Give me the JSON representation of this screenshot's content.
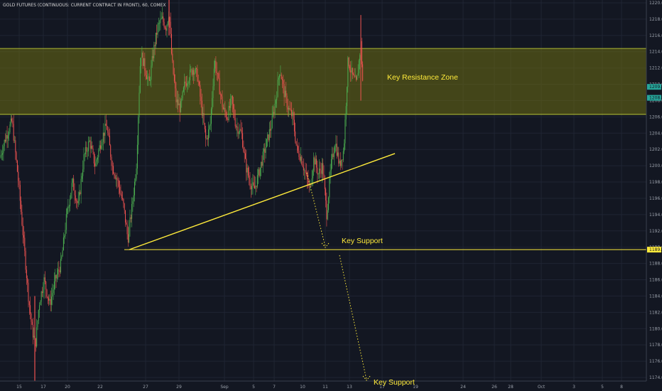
{
  "chart_data": {
    "type": "candlestick",
    "title": "GOLD FUTURES (CONTINUOUS: CURRENT CONTRACT IN FRONT), 60, COMEX",
    "ylim": [
      1173,
      1221
    ],
    "y_ticks": [
      "1174.0",
      "1176.0",
      "1178.0",
      "1180.0",
      "1182.0",
      "1184.0",
      "1186.0",
      "1188.0",
      "1190.0",
      "1192.0",
      "1194.0",
      "1196.0",
      "1198.0",
      "1200.0",
      "1202.0",
      "1204.0",
      "1206.0",
      "1208.0",
      "1210.0",
      "1212.0",
      "1214.0",
      "1216.0",
      "1218.0",
      "1220.0"
    ],
    "x_ticks": [
      "15",
      "17",
      "20",
      "22",
      "27",
      "29",
      "Sep",
      "5",
      "7",
      "10",
      "11",
      "13",
      "17",
      "19",
      "24",
      "26",
      "28",
      "Oct",
      "3",
      "5",
      "8"
    ],
    "price_labels": [
      {
        "value": 1209.6,
        "text": "1209.6",
        "color": "#26a69a"
      },
      {
        "value": 1208.6,
        "text": "1208.6",
        "color": "#26a69a"
      },
      {
        "value": 1189.7,
        "text": "1189.7",
        "color": "#ffeb3b"
      }
    ],
    "zones": [
      {
        "name": "Key Resistance Zone",
        "from": 1206.3,
        "to": 1214.4,
        "color": "#6b6b12"
      }
    ],
    "horizontal_lines": [
      {
        "value": 1189.7,
        "color": "#ffeb3b"
      }
    ],
    "trendlines": [
      {
        "from": {
          "x": "22",
          "y": 1189.7
        },
        "to": {
          "x": "17",
          "y": 1201.5
        },
        "color": "#ffeb3b"
      }
    ],
    "annotations": [
      {
        "text": "Key Resistance Zone"
      },
      {
        "text": "Key Support"
      },
      {
        "text": "Key Support"
      }
    ],
    "candle_colors": {
      "up": "#4caf50",
      "down": "#ef5350"
    },
    "price_anchors": [
      [
        0,
        1201
      ],
      [
        8,
        1203.5
      ],
      [
        17,
        1205.5
      ],
      [
        26,
        1198
      ],
      [
        34,
        1190
      ],
      [
        40,
        1184
      ],
      [
        45,
        1180
      ],
      [
        50,
        1178
      ],
      [
        55,
        1183
      ],
      [
        62,
        1186
      ],
      [
        70,
        1183
      ],
      [
        78,
        1186
      ],
      [
        86,
        1188
      ],
      [
        94,
        1194
      ],
      [
        102,
        1198
      ],
      [
        110,
        1195
      ],
      [
        118,
        1201
      ],
      [
        126,
        1203
      ],
      [
        134,
        1200
      ],
      [
        142,
        1203
      ],
      [
        150,
        1205
      ],
      [
        158,
        1200
      ],
      [
        166,
        1198
      ],
      [
        174,
        1195
      ],
      [
        180,
        1191
      ],
      [
        186,
        1195
      ],
      [
        192,
        1200
      ],
      [
        198,
        1214
      ],
      [
        204,
        1212
      ],
      [
        210,
        1210
      ],
      [
        216,
        1214
      ],
      [
        222,
        1217
      ],
      [
        228,
        1218
      ],
      [
        234,
        1217
      ],
      [
        238,
        1219
      ],
      [
        242,
        1213
      ],
      [
        248,
        1208
      ],
      [
        254,
        1207
      ],
      [
        260,
        1210
      ],
      [
        266,
        1211
      ],
      [
        272,
        1212
      ],
      [
        278,
        1211
      ],
      [
        284,
        1207
      ],
      [
        290,
        1203
      ],
      [
        296,
        1205
      ],
      [
        302,
        1213
      ],
      [
        308,
        1210
      ],
      [
        314,
        1207
      ],
      [
        320,
        1206
      ],
      [
        326,
        1208
      ],
      [
        332,
        1205
      ],
      [
        340,
        1204
      ],
      [
        346,
        1200
      ],
      [
        352,
        1198
      ],
      [
        358,
        1197
      ],
      [
        364,
        1199
      ],
      [
        370,
        1201
      ],
      [
        376,
        1203
      ],
      [
        382,
        1205
      ],
      [
        388,
        1208
      ],
      [
        394,
        1212
      ],
      [
        400,
        1209
      ],
      [
        406,
        1207
      ],
      [
        412,
        1206
      ],
      [
        418,
        1202
      ],
      [
        424,
        1201
      ],
      [
        430,
        1199
      ],
      [
        436,
        1197
      ],
      [
        442,
        1201
      ],
      [
        448,
        1199
      ],
      [
        454,
        1200
      ],
      [
        460,
        1194
      ],
      [
        466,
        1200
      ],
      [
        472,
        1203
      ],
      [
        478,
        1200
      ],
      [
        484,
        1202
      ],
      [
        490,
        1213
      ],
      [
        496,
        1211
      ],
      [
        502,
        1210
      ],
      [
        508,
        1215
      ],
      [
        512,
        1208
      ]
    ]
  }
}
